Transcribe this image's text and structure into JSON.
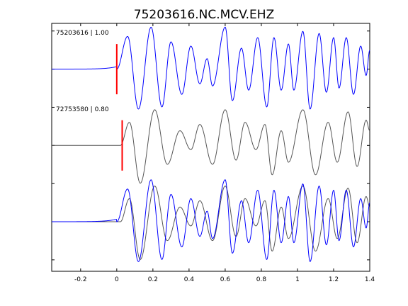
{
  "chart_data": {
    "type": "line",
    "title": "75203616.NC.MCV.EHZ",
    "xlabel": "",
    "ylabel": "",
    "xlim": [
      -0.36,
      1.4
    ],
    "xticks": [
      -0.2,
      0,
      0.2,
      0.4,
      0.6,
      0.8,
      1,
      1.2,
      1.4
    ],
    "xtick_labels": [
      "-0.2",
      "0",
      "0.2",
      "0.4",
      "0.6",
      "0.8",
      "1",
      "1.2",
      "1.4"
    ],
    "grid": false,
    "traces": [
      {
        "label": "75203616 | 1.00",
        "color": "#0000ff",
        "pick_time": 0.0,
        "pick_color": "#ff0000",
        "offset": 3,
        "onset": 0.0,
        "pre_amp": 0.06,
        "peaks": [
          [
            0.06,
            0.78
          ],
          [
            0.12,
            -0.95
          ],
          [
            0.19,
            1.0
          ],
          [
            0.25,
            -0.9
          ],
          [
            0.3,
            0.65
          ],
          [
            0.36,
            -0.6
          ],
          [
            0.41,
            0.55
          ],
          [
            0.46,
            -0.35
          ],
          [
            0.5,
            0.25
          ],
          [
            0.53,
            -0.4
          ],
          [
            0.6,
            1.0
          ],
          [
            0.64,
            -0.75
          ],
          [
            0.69,
            0.5
          ],
          [
            0.73,
            -0.5
          ],
          [
            0.78,
            0.75
          ],
          [
            0.83,
            -0.9
          ],
          [
            0.87,
            0.75
          ],
          [
            0.91,
            -0.5
          ],
          [
            0.95,
            0.6
          ],
          [
            0.98,
            -0.5
          ],
          [
            1.03,
            0.9
          ],
          [
            1.07,
            -0.95
          ],
          [
            1.12,
            0.85
          ],
          [
            1.16,
            -0.55
          ],
          [
            1.2,
            0.75
          ],
          [
            1.23,
            -0.45
          ],
          [
            1.27,
            0.75
          ],
          [
            1.31,
            -0.6
          ],
          [
            1.35,
            0.55
          ],
          [
            1.38,
            -0.15
          ],
          [
            1.4,
            0.45
          ]
        ]
      },
      {
        "label": "72753580 | 0.80",
        "color": "#555555",
        "pick_time": 0.03,
        "pick_color": "#ff0000",
        "offset": 2,
        "onset": 0.02,
        "pre_amp": 0.0,
        "peaks": [
          [
            0.07,
            0.55
          ],
          [
            0.13,
            -0.9
          ],
          [
            0.21,
            0.85
          ],
          [
            0.28,
            -0.45
          ],
          [
            0.35,
            0.35
          ],
          [
            0.41,
            -0.1
          ],
          [
            0.46,
            0.5
          ],
          [
            0.53,
            -0.45
          ],
          [
            0.6,
            0.85
          ],
          [
            0.66,
            -0.35
          ],
          [
            0.71,
            0.55
          ],
          [
            0.77,
            -0.1
          ],
          [
            0.82,
            0.5
          ],
          [
            0.86,
            -0.7
          ],
          [
            0.91,
            0.35
          ],
          [
            0.95,
            -0.4
          ],
          [
            1.03,
            0.85
          ],
          [
            1.1,
            -0.7
          ],
          [
            1.17,
            0.55
          ],
          [
            1.22,
            -0.4
          ],
          [
            1.28,
            0.8
          ],
          [
            1.33,
            -0.5
          ],
          [
            1.38,
            0.6
          ],
          [
            1.4,
            0.35
          ]
        ]
      }
    ],
    "overlay_offset": 1,
    "ylim": [
      0.35,
      3.6
    ]
  }
}
